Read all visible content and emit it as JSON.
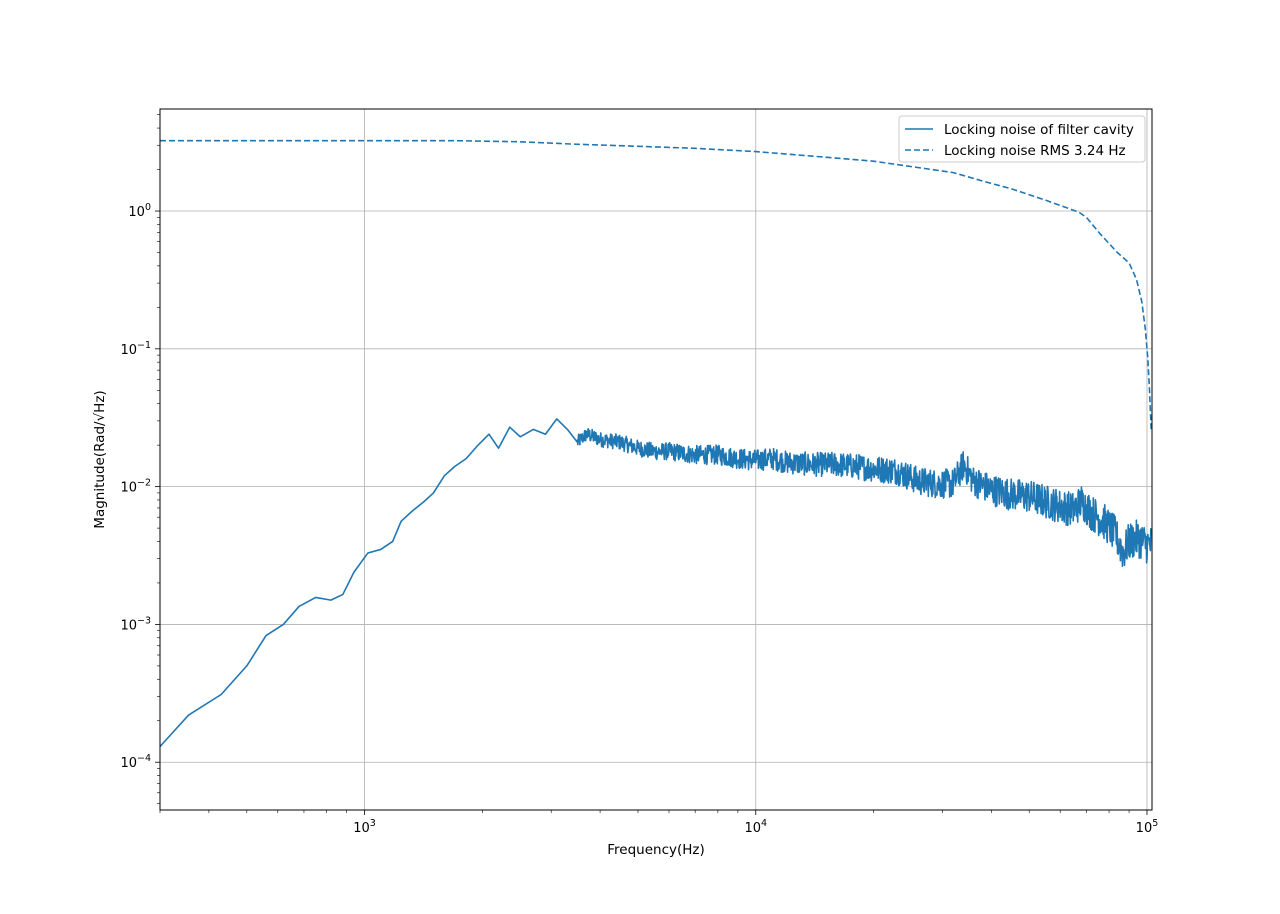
{
  "chart_data": {
    "type": "line",
    "title": "",
    "xlabel": "Frequency(Hz)",
    "ylabel": "Magnitude(Rad/√Hz)",
    "x_scale": "log",
    "y_scale": "log",
    "xlim": [
      300,
      103000
    ],
    "ylim": [
      4.5e-05,
      5.5
    ],
    "grid": true,
    "legend_placement": "top-right",
    "x_ticks": [
      {
        "value": 1000,
        "base": "10",
        "exp": "3"
      },
      {
        "value": 10000,
        "base": "10",
        "exp": "4"
      },
      {
        "value": 100000,
        "base": "10",
        "exp": "5"
      }
    ],
    "y_ticks": [
      {
        "value": 0.0001,
        "base": "10",
        "exp": "−4"
      },
      {
        "value": 0.001,
        "base": "10",
        "exp": "−3"
      },
      {
        "value": 0.01,
        "base": "10",
        "exp": "−2"
      },
      {
        "value": 0.1,
        "base": "10",
        "exp": "−1"
      },
      {
        "value": 1,
        "base": "10",
        "exp": "0"
      }
    ],
    "series": [
      {
        "name": "Locking noise of filter cavity",
        "color": "#1f77b4",
        "style": "solid",
        "noise": true,
        "points": [
          [
            300,
            0.00013
          ],
          [
            355,
            0.00022
          ],
          [
            430,
            0.00031
          ],
          [
            500,
            0.0005
          ],
          [
            560,
            0.00083
          ],
          [
            620,
            0.001
          ],
          [
            680,
            0.00135
          ],
          [
            750,
            0.00157
          ],
          [
            820,
            0.0015
          ],
          [
            880,
            0.00165
          ],
          [
            940,
            0.0024
          ],
          [
            1020,
            0.0033
          ],
          [
            1100,
            0.0035
          ],
          [
            1180,
            0.004
          ],
          [
            1240,
            0.0056
          ],
          [
            1320,
            0.0066
          ],
          [
            1420,
            0.0078
          ],
          [
            1500,
            0.009
          ],
          [
            1600,
            0.012
          ],
          [
            1700,
            0.014
          ],
          [
            1820,
            0.016
          ],
          [
            1950,
            0.02
          ],
          [
            2080,
            0.024
          ],
          [
            2200,
            0.019
          ],
          [
            2350,
            0.027
          ],
          [
            2500,
            0.023
          ],
          [
            2700,
            0.026
          ],
          [
            2900,
            0.024
          ],
          [
            3100,
            0.031
          ],
          [
            3300,
            0.026
          ],
          [
            3500,
            0.021
          ],
          [
            3700,
            0.024
          ],
          [
            4000,
            0.022
          ],
          [
            4500,
            0.021
          ],
          [
            5000,
            0.019
          ],
          [
            5500,
            0.018
          ],
          [
            6000,
            0.018
          ],
          [
            7000,
            0.017
          ],
          [
            8000,
            0.017
          ],
          [
            9000,
            0.016
          ],
          [
            10000,
            0.0155
          ],
          [
            11000,
            0.016
          ],
          [
            12000,
            0.015
          ],
          [
            14000,
            0.0145
          ],
          [
            16000,
            0.0145
          ],
          [
            18000,
            0.014
          ],
          [
            20000,
            0.0135
          ],
          [
            23000,
            0.013
          ],
          [
            26000,
            0.011
          ],
          [
            29000,
            0.0105
          ],
          [
            32000,
            0.0105
          ],
          [
            34000,
            0.0145
          ],
          [
            36000,
            0.011
          ],
          [
            40000,
            0.0095
          ],
          [
            45000,
            0.0088
          ],
          [
            50000,
            0.0085
          ],
          [
            55000,
            0.0078
          ],
          [
            60000,
            0.0072
          ],
          [
            65000,
            0.0068
          ],
          [
            68000,
            0.0078
          ],
          [
            72000,
            0.0065
          ],
          [
            78000,
            0.0055
          ],
          [
            83000,
            0.0045
          ],
          [
            87000,
            0.0033
          ],
          [
            90000,
            0.004
          ],
          [
            95000,
            0.0042
          ],
          [
            100000,
            0.0038
          ],
          [
            103000,
            0.0038
          ]
        ]
      },
      {
        "name": "Locking noise RMS 3.24 Hz",
        "color": "#1f77b4",
        "style": "dashed",
        "noise": false,
        "points": [
          [
            300,
            3.24
          ],
          [
            1000,
            3.24
          ],
          [
            1700,
            3.24
          ],
          [
            2500,
            3.18
          ],
          [
            3500,
            3.05
          ],
          [
            5000,
            2.95
          ],
          [
            7000,
            2.85
          ],
          [
            10000,
            2.7
          ],
          [
            14000,
            2.5
          ],
          [
            20000,
            2.3
          ],
          [
            25000,
            2.1
          ],
          [
            32000,
            1.9
          ],
          [
            38000,
            1.65
          ],
          [
            45000,
            1.45
          ],
          [
            55000,
            1.2
          ],
          [
            67000,
            0.98
          ],
          [
            70000,
            0.9
          ],
          [
            76000,
            0.68
          ],
          [
            84000,
            0.5
          ],
          [
            90000,
            0.42
          ],
          [
            94000,
            0.32
          ],
          [
            97000,
            0.22
          ],
          [
            99000,
            0.14
          ],
          [
            100500,
            0.085
          ],
          [
            101500,
            0.05
          ],
          [
            102500,
            0.026
          ]
        ]
      }
    ]
  }
}
